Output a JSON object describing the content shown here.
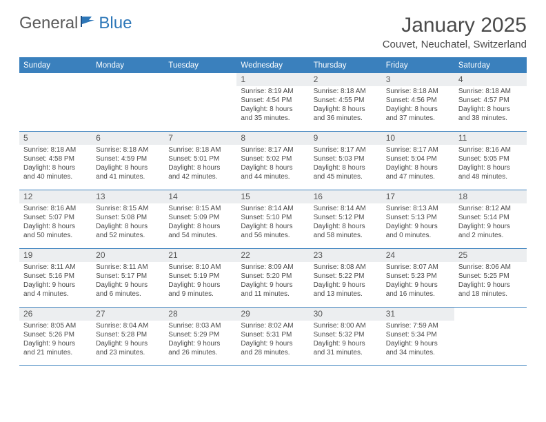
{
  "brand": {
    "part1": "General",
    "part2": "Blue"
  },
  "title": "January 2025",
  "location": "Couvet, Neuchatel, Switzerland",
  "colors": {
    "header_bg": "#3a80bd",
    "header_text": "#ffffff",
    "daynum_bg": "#eceef0",
    "text": "#4a4a4a",
    "page_bg": "#ffffff"
  },
  "days_of_week": [
    "Sunday",
    "Monday",
    "Tuesday",
    "Wednesday",
    "Thursday",
    "Friday",
    "Saturday"
  ],
  "weeks": [
    [
      {
        "n": "",
        "lines": []
      },
      {
        "n": "",
        "lines": []
      },
      {
        "n": "",
        "lines": []
      },
      {
        "n": "1",
        "lines": [
          "Sunrise: 8:19 AM",
          "Sunset: 4:54 PM",
          "Daylight: 8 hours",
          "and 35 minutes."
        ]
      },
      {
        "n": "2",
        "lines": [
          "Sunrise: 8:18 AM",
          "Sunset: 4:55 PM",
          "Daylight: 8 hours",
          "and 36 minutes."
        ]
      },
      {
        "n": "3",
        "lines": [
          "Sunrise: 8:18 AM",
          "Sunset: 4:56 PM",
          "Daylight: 8 hours",
          "and 37 minutes."
        ]
      },
      {
        "n": "4",
        "lines": [
          "Sunrise: 8:18 AM",
          "Sunset: 4:57 PM",
          "Daylight: 8 hours",
          "and 38 minutes."
        ]
      }
    ],
    [
      {
        "n": "5",
        "lines": [
          "Sunrise: 8:18 AM",
          "Sunset: 4:58 PM",
          "Daylight: 8 hours",
          "and 40 minutes."
        ]
      },
      {
        "n": "6",
        "lines": [
          "Sunrise: 8:18 AM",
          "Sunset: 4:59 PM",
          "Daylight: 8 hours",
          "and 41 minutes."
        ]
      },
      {
        "n": "7",
        "lines": [
          "Sunrise: 8:18 AM",
          "Sunset: 5:01 PM",
          "Daylight: 8 hours",
          "and 42 minutes."
        ]
      },
      {
        "n": "8",
        "lines": [
          "Sunrise: 8:17 AM",
          "Sunset: 5:02 PM",
          "Daylight: 8 hours",
          "and 44 minutes."
        ]
      },
      {
        "n": "9",
        "lines": [
          "Sunrise: 8:17 AM",
          "Sunset: 5:03 PM",
          "Daylight: 8 hours",
          "and 45 minutes."
        ]
      },
      {
        "n": "10",
        "lines": [
          "Sunrise: 8:17 AM",
          "Sunset: 5:04 PM",
          "Daylight: 8 hours",
          "and 47 minutes."
        ]
      },
      {
        "n": "11",
        "lines": [
          "Sunrise: 8:16 AM",
          "Sunset: 5:05 PM",
          "Daylight: 8 hours",
          "and 48 minutes."
        ]
      }
    ],
    [
      {
        "n": "12",
        "lines": [
          "Sunrise: 8:16 AM",
          "Sunset: 5:07 PM",
          "Daylight: 8 hours",
          "and 50 minutes."
        ]
      },
      {
        "n": "13",
        "lines": [
          "Sunrise: 8:15 AM",
          "Sunset: 5:08 PM",
          "Daylight: 8 hours",
          "and 52 minutes."
        ]
      },
      {
        "n": "14",
        "lines": [
          "Sunrise: 8:15 AM",
          "Sunset: 5:09 PM",
          "Daylight: 8 hours",
          "and 54 minutes."
        ]
      },
      {
        "n": "15",
        "lines": [
          "Sunrise: 8:14 AM",
          "Sunset: 5:10 PM",
          "Daylight: 8 hours",
          "and 56 minutes."
        ]
      },
      {
        "n": "16",
        "lines": [
          "Sunrise: 8:14 AM",
          "Sunset: 5:12 PM",
          "Daylight: 8 hours",
          "and 58 minutes."
        ]
      },
      {
        "n": "17",
        "lines": [
          "Sunrise: 8:13 AM",
          "Sunset: 5:13 PM",
          "Daylight: 9 hours",
          "and 0 minutes."
        ]
      },
      {
        "n": "18",
        "lines": [
          "Sunrise: 8:12 AM",
          "Sunset: 5:14 PM",
          "Daylight: 9 hours",
          "and 2 minutes."
        ]
      }
    ],
    [
      {
        "n": "19",
        "lines": [
          "Sunrise: 8:11 AM",
          "Sunset: 5:16 PM",
          "Daylight: 9 hours",
          "and 4 minutes."
        ]
      },
      {
        "n": "20",
        "lines": [
          "Sunrise: 8:11 AM",
          "Sunset: 5:17 PM",
          "Daylight: 9 hours",
          "and 6 minutes."
        ]
      },
      {
        "n": "21",
        "lines": [
          "Sunrise: 8:10 AM",
          "Sunset: 5:19 PM",
          "Daylight: 9 hours",
          "and 9 minutes."
        ]
      },
      {
        "n": "22",
        "lines": [
          "Sunrise: 8:09 AM",
          "Sunset: 5:20 PM",
          "Daylight: 9 hours",
          "and 11 minutes."
        ]
      },
      {
        "n": "23",
        "lines": [
          "Sunrise: 8:08 AM",
          "Sunset: 5:22 PM",
          "Daylight: 9 hours",
          "and 13 minutes."
        ]
      },
      {
        "n": "24",
        "lines": [
          "Sunrise: 8:07 AM",
          "Sunset: 5:23 PM",
          "Daylight: 9 hours",
          "and 16 minutes."
        ]
      },
      {
        "n": "25",
        "lines": [
          "Sunrise: 8:06 AM",
          "Sunset: 5:25 PM",
          "Daylight: 9 hours",
          "and 18 minutes."
        ]
      }
    ],
    [
      {
        "n": "26",
        "lines": [
          "Sunrise: 8:05 AM",
          "Sunset: 5:26 PM",
          "Daylight: 9 hours",
          "and 21 minutes."
        ]
      },
      {
        "n": "27",
        "lines": [
          "Sunrise: 8:04 AM",
          "Sunset: 5:28 PM",
          "Daylight: 9 hours",
          "and 23 minutes."
        ]
      },
      {
        "n": "28",
        "lines": [
          "Sunrise: 8:03 AM",
          "Sunset: 5:29 PM",
          "Daylight: 9 hours",
          "and 26 minutes."
        ]
      },
      {
        "n": "29",
        "lines": [
          "Sunrise: 8:02 AM",
          "Sunset: 5:31 PM",
          "Daylight: 9 hours",
          "and 28 minutes."
        ]
      },
      {
        "n": "30",
        "lines": [
          "Sunrise: 8:00 AM",
          "Sunset: 5:32 PM",
          "Daylight: 9 hours",
          "and 31 minutes."
        ]
      },
      {
        "n": "31",
        "lines": [
          "Sunrise: 7:59 AM",
          "Sunset: 5:34 PM",
          "Daylight: 9 hours",
          "and 34 minutes."
        ]
      },
      {
        "n": "",
        "lines": []
      }
    ]
  ]
}
